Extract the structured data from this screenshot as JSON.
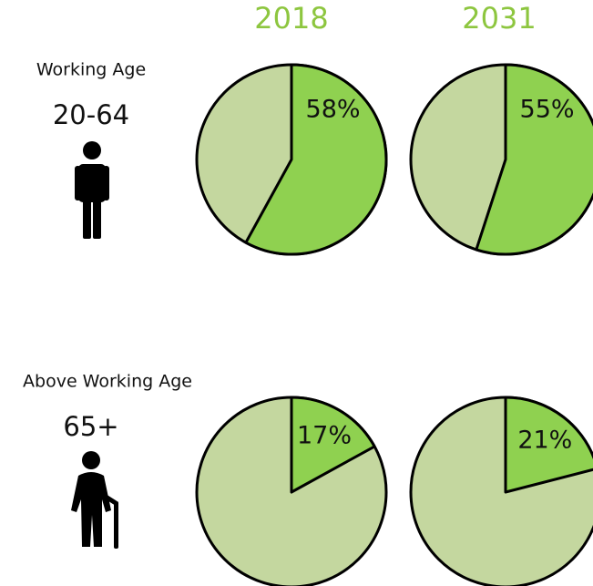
{
  "columns": [
    "2018",
    "2031"
  ],
  "rows": [
    {
      "label": "Working Age",
      "range": "20-64"
    },
    {
      "label": "Above Working Age",
      "range": "65+"
    }
  ],
  "chart_data": [
    {
      "type": "pie",
      "values": [
        58
      ],
      "value_labels": [
        "58%"
      ],
      "color": "#8fd150",
      "rest_color": "#c4d79f"
    },
    {
      "type": "pie",
      "values": [
        55
      ],
      "value_labels": [
        "55%"
      ],
      "color": "#8fd150",
      "rest_color": "#c4d79f"
    },
    {
      "type": "pie",
      "values": [
        17
      ],
      "value_labels": [
        "17%"
      ],
      "color": "#8fd150",
      "rest_color": "#c4d79f"
    },
    {
      "type": "pie",
      "values": [
        21
      ],
      "value_labels": [
        "21%"
      ],
      "color": "#8fd150",
      "rest_color": "#c4d79f"
    }
  ]
}
